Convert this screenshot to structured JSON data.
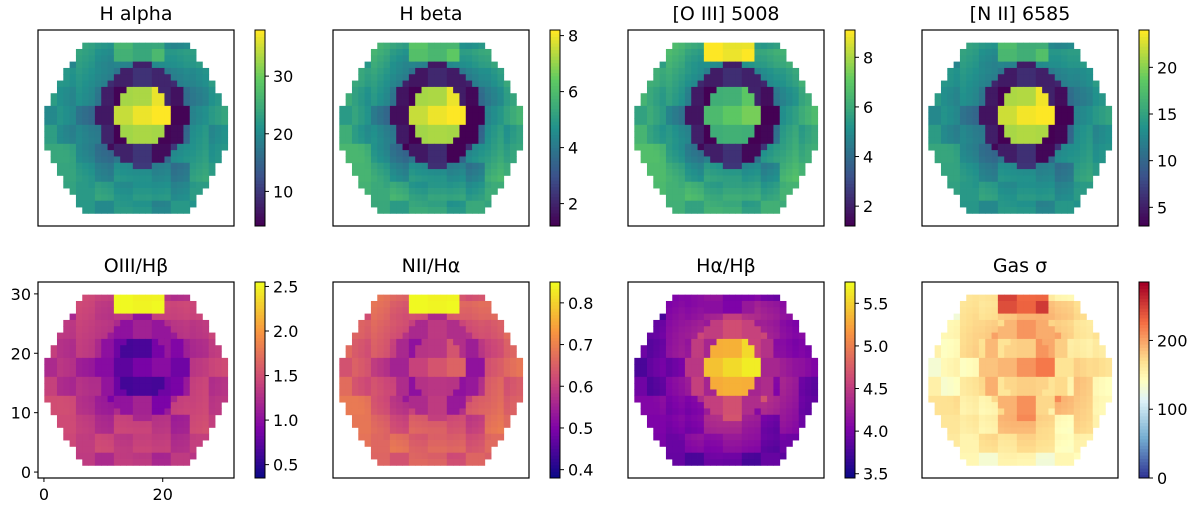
{
  "figure": {
    "description_panels": 8
  },
  "chart_data": [
    {
      "type": "heatmap",
      "title": "H alpha",
      "colormap": "viridis",
      "vmin": 4,
      "vmax": 38,
      "colorbar_ticks": [
        "10",
        "20",
        "30"
      ],
      "colorbar_tick_values": [
        10,
        20,
        30
      ],
      "core": 36,
      "ring": 7,
      "disk": 17,
      "rim": 22,
      "top_blob": 24,
      "show_axes": false
    },
    {
      "type": "heatmap",
      "title": "H beta",
      "colormap": "viridis",
      "vmin": 1.2,
      "vmax": 8.2,
      "colorbar_ticks": [
        "2",
        "4",
        "6",
        "8"
      ],
      "colorbar_tick_values": [
        2,
        4,
        6,
        8
      ],
      "core": 7.8,
      "ring": 1.6,
      "disk": 3.8,
      "rim": 5.4,
      "top_blob": 5.8,
      "show_axes": false
    },
    {
      "type": "heatmap",
      "title": "[O III] 5008",
      "colormap": "viridis",
      "vmin": 1.2,
      "vmax": 9.1,
      "colorbar_ticks": [
        "2",
        "4",
        "6",
        "8"
      ],
      "colorbar_tick_values": [
        2,
        4,
        6,
        8
      ],
      "core": 6.8,
      "ring": 1.8,
      "disk": 4.5,
      "rim": 6.2,
      "top_blob": 8.8,
      "show_axes": false
    },
    {
      "type": "heatmap",
      "title": "[N II] 6585",
      "colormap": "viridis",
      "vmin": 3,
      "vmax": 24,
      "colorbar_ticks": [
        "5",
        "10",
        "15",
        "20"
      ],
      "colorbar_tick_values": [
        5,
        10,
        15,
        20
      ],
      "core": 23,
      "ring": 4.5,
      "disk": 11,
      "rim": 14,
      "top_blob": 16,
      "show_axes": false
    },
    {
      "type": "heatmap",
      "title": "OIII/Hβ",
      "colormap": "plasma",
      "vmin": 0.35,
      "vmax": 2.55,
      "colorbar_ticks": [
        "0.5",
        "1.0",
        "1.5",
        "2.0",
        "2.5"
      ],
      "colorbar_tick_values": [
        0.5,
        1.0,
        1.5,
        2.0,
        2.5
      ],
      "core": 0.8,
      "ring": 1.0,
      "disk": 1.2,
      "rim": 1.35,
      "top_blob": 2.5,
      "show_axes": true,
      "x_ticks": [
        "0",
        "20"
      ],
      "x_tick_values": [
        0,
        20
      ],
      "y_ticks": [
        "0",
        "10",
        "20",
        "30"
      ],
      "y_tick_values": [
        0,
        10,
        20,
        30
      ],
      "xlim": [
        -1,
        32
      ],
      "ylim": [
        -1,
        32
      ]
    },
    {
      "type": "heatmap",
      "title": "NII/Hα",
      "colormap": "plasma",
      "vmin": 0.38,
      "vmax": 0.85,
      "colorbar_ticks": [
        "0.4",
        "0.5",
        "0.6",
        "0.7",
        "0.8"
      ],
      "colorbar_tick_values": [
        0.4,
        0.5,
        0.6,
        0.7,
        0.8
      ],
      "core": 0.62,
      "ring": 0.56,
      "disk": 0.6,
      "rim": 0.66,
      "top_blob": 0.84,
      "show_axes": false
    },
    {
      "type": "heatmap",
      "title": "Hα/Hβ",
      "colormap": "plasma",
      "vmin": 3.45,
      "vmax": 5.75,
      "colorbar_ticks": [
        "3.5",
        "4.0",
        "4.5",
        "5.0",
        "5.5"
      ],
      "colorbar_tick_values": [
        3.5,
        4.0,
        4.5,
        5.0,
        5.5
      ],
      "core": 5.5,
      "ring": 4.5,
      "disk": 4.2,
      "rim": 3.9,
      "top_blob": 4.0,
      "show_axes": false
    },
    {
      "type": "heatmap",
      "title": "Gas σ",
      "colormap": "RdYlBu_r",
      "vmin": 0,
      "vmax": 285,
      "colorbar_ticks": [
        "0",
        "100",
        "200"
      ],
      "colorbar_tick_values": [
        0,
        100,
        200
      ],
      "core": 200,
      "ring": 190,
      "disk": 170,
      "rim": 150,
      "top_blob": 230,
      "show_axes": false
    }
  ]
}
